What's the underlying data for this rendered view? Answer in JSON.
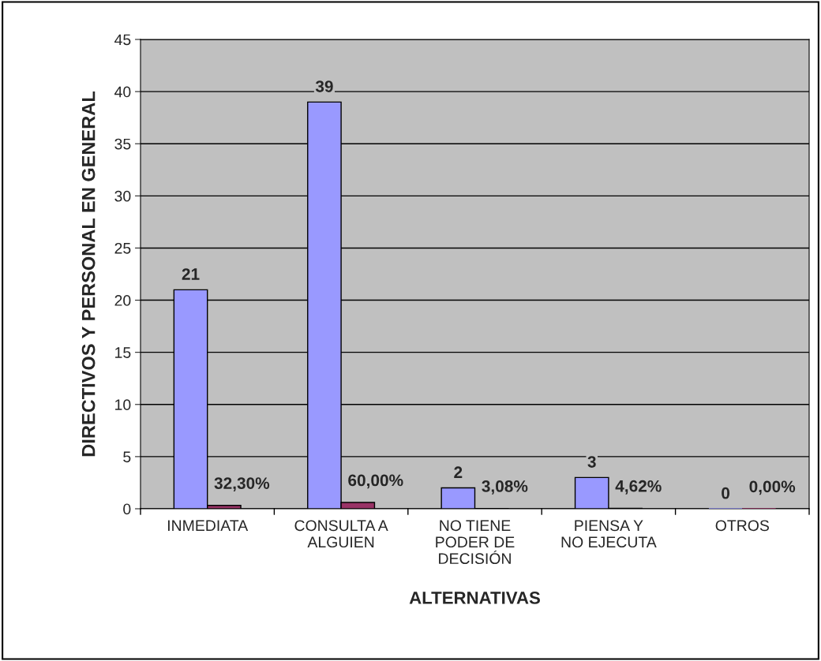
{
  "chart_data": {
    "type": "bar",
    "categories": [
      "INMEDIATA",
      "CONSULTA A\nALGUIEN",
      "NO TIENE\nPODER DE\nDECISIÓN",
      "PIENSA Y\nNO EJECUTA",
      "OTROS"
    ],
    "series": [
      {
        "color": "#9999ff",
        "values": [
          21,
          39,
          2,
          3,
          0
        ],
        "value_labels": [
          "21",
          "39",
          "2",
          "3",
          "0"
        ]
      },
      {
        "color": "#993366",
        "values": [
          0.323,
          0.6,
          0.0308,
          0.0462,
          0.0
        ],
        "value_labels": [
          "32,30%",
          "60,00%",
          "3,08%",
          "4,62%",
          "0,00%"
        ]
      }
    ],
    "xlabel": "ALTERNATIVAS",
    "ylabel": "DIRECTIVOS Y PERSONAL EN GENERAL",
    "ylim": [
      0,
      45
    ],
    "yticks": [
      0,
      5,
      10,
      15,
      20,
      25,
      30,
      35,
      40,
      45
    ],
    "grid": "y",
    "legend": false
  }
}
